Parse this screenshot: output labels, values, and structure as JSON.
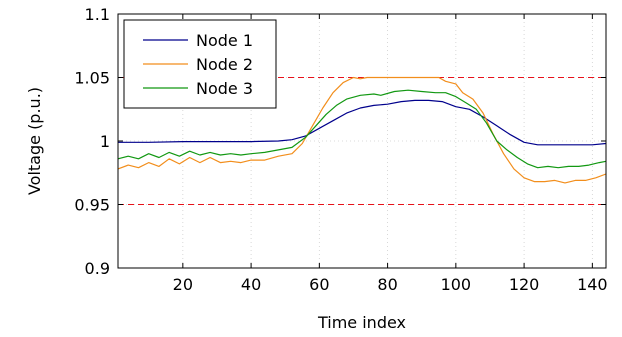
{
  "chart_data": {
    "type": "line",
    "title": "",
    "xlabel": "Time index",
    "ylabel": "Voltage (p.u.)",
    "xlim": [
      1,
      144
    ],
    "ylim": [
      0.9,
      1.1
    ],
    "x_ticks": [
      20,
      40,
      60,
      80,
      100,
      120,
      140
    ],
    "y_ticks": [
      0.9,
      0.95,
      1,
      1.05,
      1.1
    ],
    "x_tick_labels": [
      "20",
      "40",
      "60",
      "80",
      "100",
      "120",
      "140"
    ],
    "y_tick_labels": [
      "0.9",
      "0.95",
      "1",
      "1.05",
      "1.1"
    ],
    "grid": true,
    "legend_position": "top-left",
    "reference_lines": [
      {
        "y": 1.05,
        "color": "#e8121b",
        "style": "dashed"
      },
      {
        "y": 0.95,
        "color": "#e8121b",
        "style": "dashed"
      }
    ],
    "series": [
      {
        "name": "Node 1",
        "color": "#00008c",
        "points": [
          [
            1,
            0.999
          ],
          [
            10,
            0.999
          ],
          [
            20,
            0.9995
          ],
          [
            30,
            0.9995
          ],
          [
            40,
            0.9995
          ],
          [
            48,
            1.0
          ],
          [
            52,
            1.001
          ],
          [
            56,
            1.004
          ],
          [
            60,
            1.01
          ],
          [
            64,
            1.016
          ],
          [
            68,
            1.022
          ],
          [
            72,
            1.026
          ],
          [
            76,
            1.028
          ],
          [
            80,
            1.029
          ],
          [
            84,
            1.031
          ],
          [
            88,
            1.032
          ],
          [
            92,
            1.032
          ],
          [
            96,
            1.031
          ],
          [
            100,
            1.027
          ],
          [
            104,
            1.025
          ],
          [
            108,
            1.019
          ],
          [
            112,
            1.012
          ],
          [
            116,
            1.005
          ],
          [
            120,
            0.999
          ],
          [
            124,
            0.997
          ],
          [
            130,
            0.997
          ],
          [
            140,
            0.997
          ],
          [
            144,
            0.998
          ]
        ]
      },
      {
        "name": "Node 2",
        "color": "#f28e1c",
        "points": [
          [
            1,
            0.978
          ],
          [
            4,
            0.981
          ],
          [
            7,
            0.979
          ],
          [
            10,
            0.983
          ],
          [
            13,
            0.98
          ],
          [
            16,
            0.986
          ],
          [
            19,
            0.982
          ],
          [
            22,
            0.987
          ],
          [
            25,
            0.983
          ],
          [
            28,
            0.987
          ],
          [
            31,
            0.983
          ],
          [
            34,
            0.984
          ],
          [
            37,
            0.983
          ],
          [
            40,
            0.985
          ],
          [
            44,
            0.985
          ],
          [
            48,
            0.988
          ],
          [
            52,
            0.99
          ],
          [
            55,
            0.998
          ],
          [
            58,
            1.012
          ],
          [
            61,
            1.026
          ],
          [
            64,
            1.038
          ],
          [
            67,
            1.046
          ],
          [
            70,
            1.05
          ],
          [
            72,
            1.049
          ],
          [
            74,
            1.05
          ],
          [
            80,
            1.05
          ],
          [
            88,
            1.05
          ],
          [
            95,
            1.05
          ],
          [
            97,
            1.047
          ],
          [
            100,
            1.045
          ],
          [
            102,
            1.038
          ],
          [
            105,
            1.033
          ],
          [
            108,
            1.022
          ],
          [
            111,
            1.005
          ],
          [
            114,
            0.99
          ],
          [
            117,
            0.978
          ],
          [
            120,
            0.971
          ],
          [
            123,
            0.968
          ],
          [
            126,
            0.968
          ],
          [
            129,
            0.969
          ],
          [
            132,
            0.967
          ],
          [
            135,
            0.969
          ],
          [
            138,
            0.969
          ],
          [
            141,
            0.971
          ],
          [
            144,
            0.974
          ]
        ]
      },
      {
        "name": "Node 3",
        "color": "#129812",
        "points": [
          [
            1,
            0.986
          ],
          [
            4,
            0.988
          ],
          [
            7,
            0.986
          ],
          [
            10,
            0.99
          ],
          [
            13,
            0.987
          ],
          [
            16,
            0.991
          ],
          [
            19,
            0.988
          ],
          [
            22,
            0.992
          ],
          [
            25,
            0.989
          ],
          [
            28,
            0.991
          ],
          [
            31,
            0.989
          ],
          [
            34,
            0.99
          ],
          [
            37,
            0.989
          ],
          [
            40,
            0.99
          ],
          [
            44,
            0.991
          ],
          [
            48,
            0.993
          ],
          [
            52,
            0.995
          ],
          [
            56,
            1.003
          ],
          [
            59,
            1.012
          ],
          [
            62,
            1.021
          ],
          [
            65,
            1.028
          ],
          [
            68,
            1.033
          ],
          [
            72,
            1.036
          ],
          [
            76,
            1.037
          ],
          [
            78,
            1.036
          ],
          [
            82,
            1.039
          ],
          [
            86,
            1.04
          ],
          [
            90,
            1.039
          ],
          [
            94,
            1.038
          ],
          [
            97,
            1.038
          ],
          [
            100,
            1.035
          ],
          [
            103,
            1.03
          ],
          [
            106,
            1.025
          ],
          [
            109,
            1.014
          ],
          [
            112,
            1.0
          ],
          [
            115,
            0.993
          ],
          [
            118,
            0.987
          ],
          [
            121,
            0.982
          ],
          [
            124,
            0.979
          ],
          [
            127,
            0.98
          ],
          [
            130,
            0.979
          ],
          [
            133,
            0.98
          ],
          [
            136,
            0.98
          ],
          [
            139,
            0.981
          ],
          [
            142,
            0.983
          ],
          [
            144,
            0.984
          ]
        ]
      }
    ]
  }
}
